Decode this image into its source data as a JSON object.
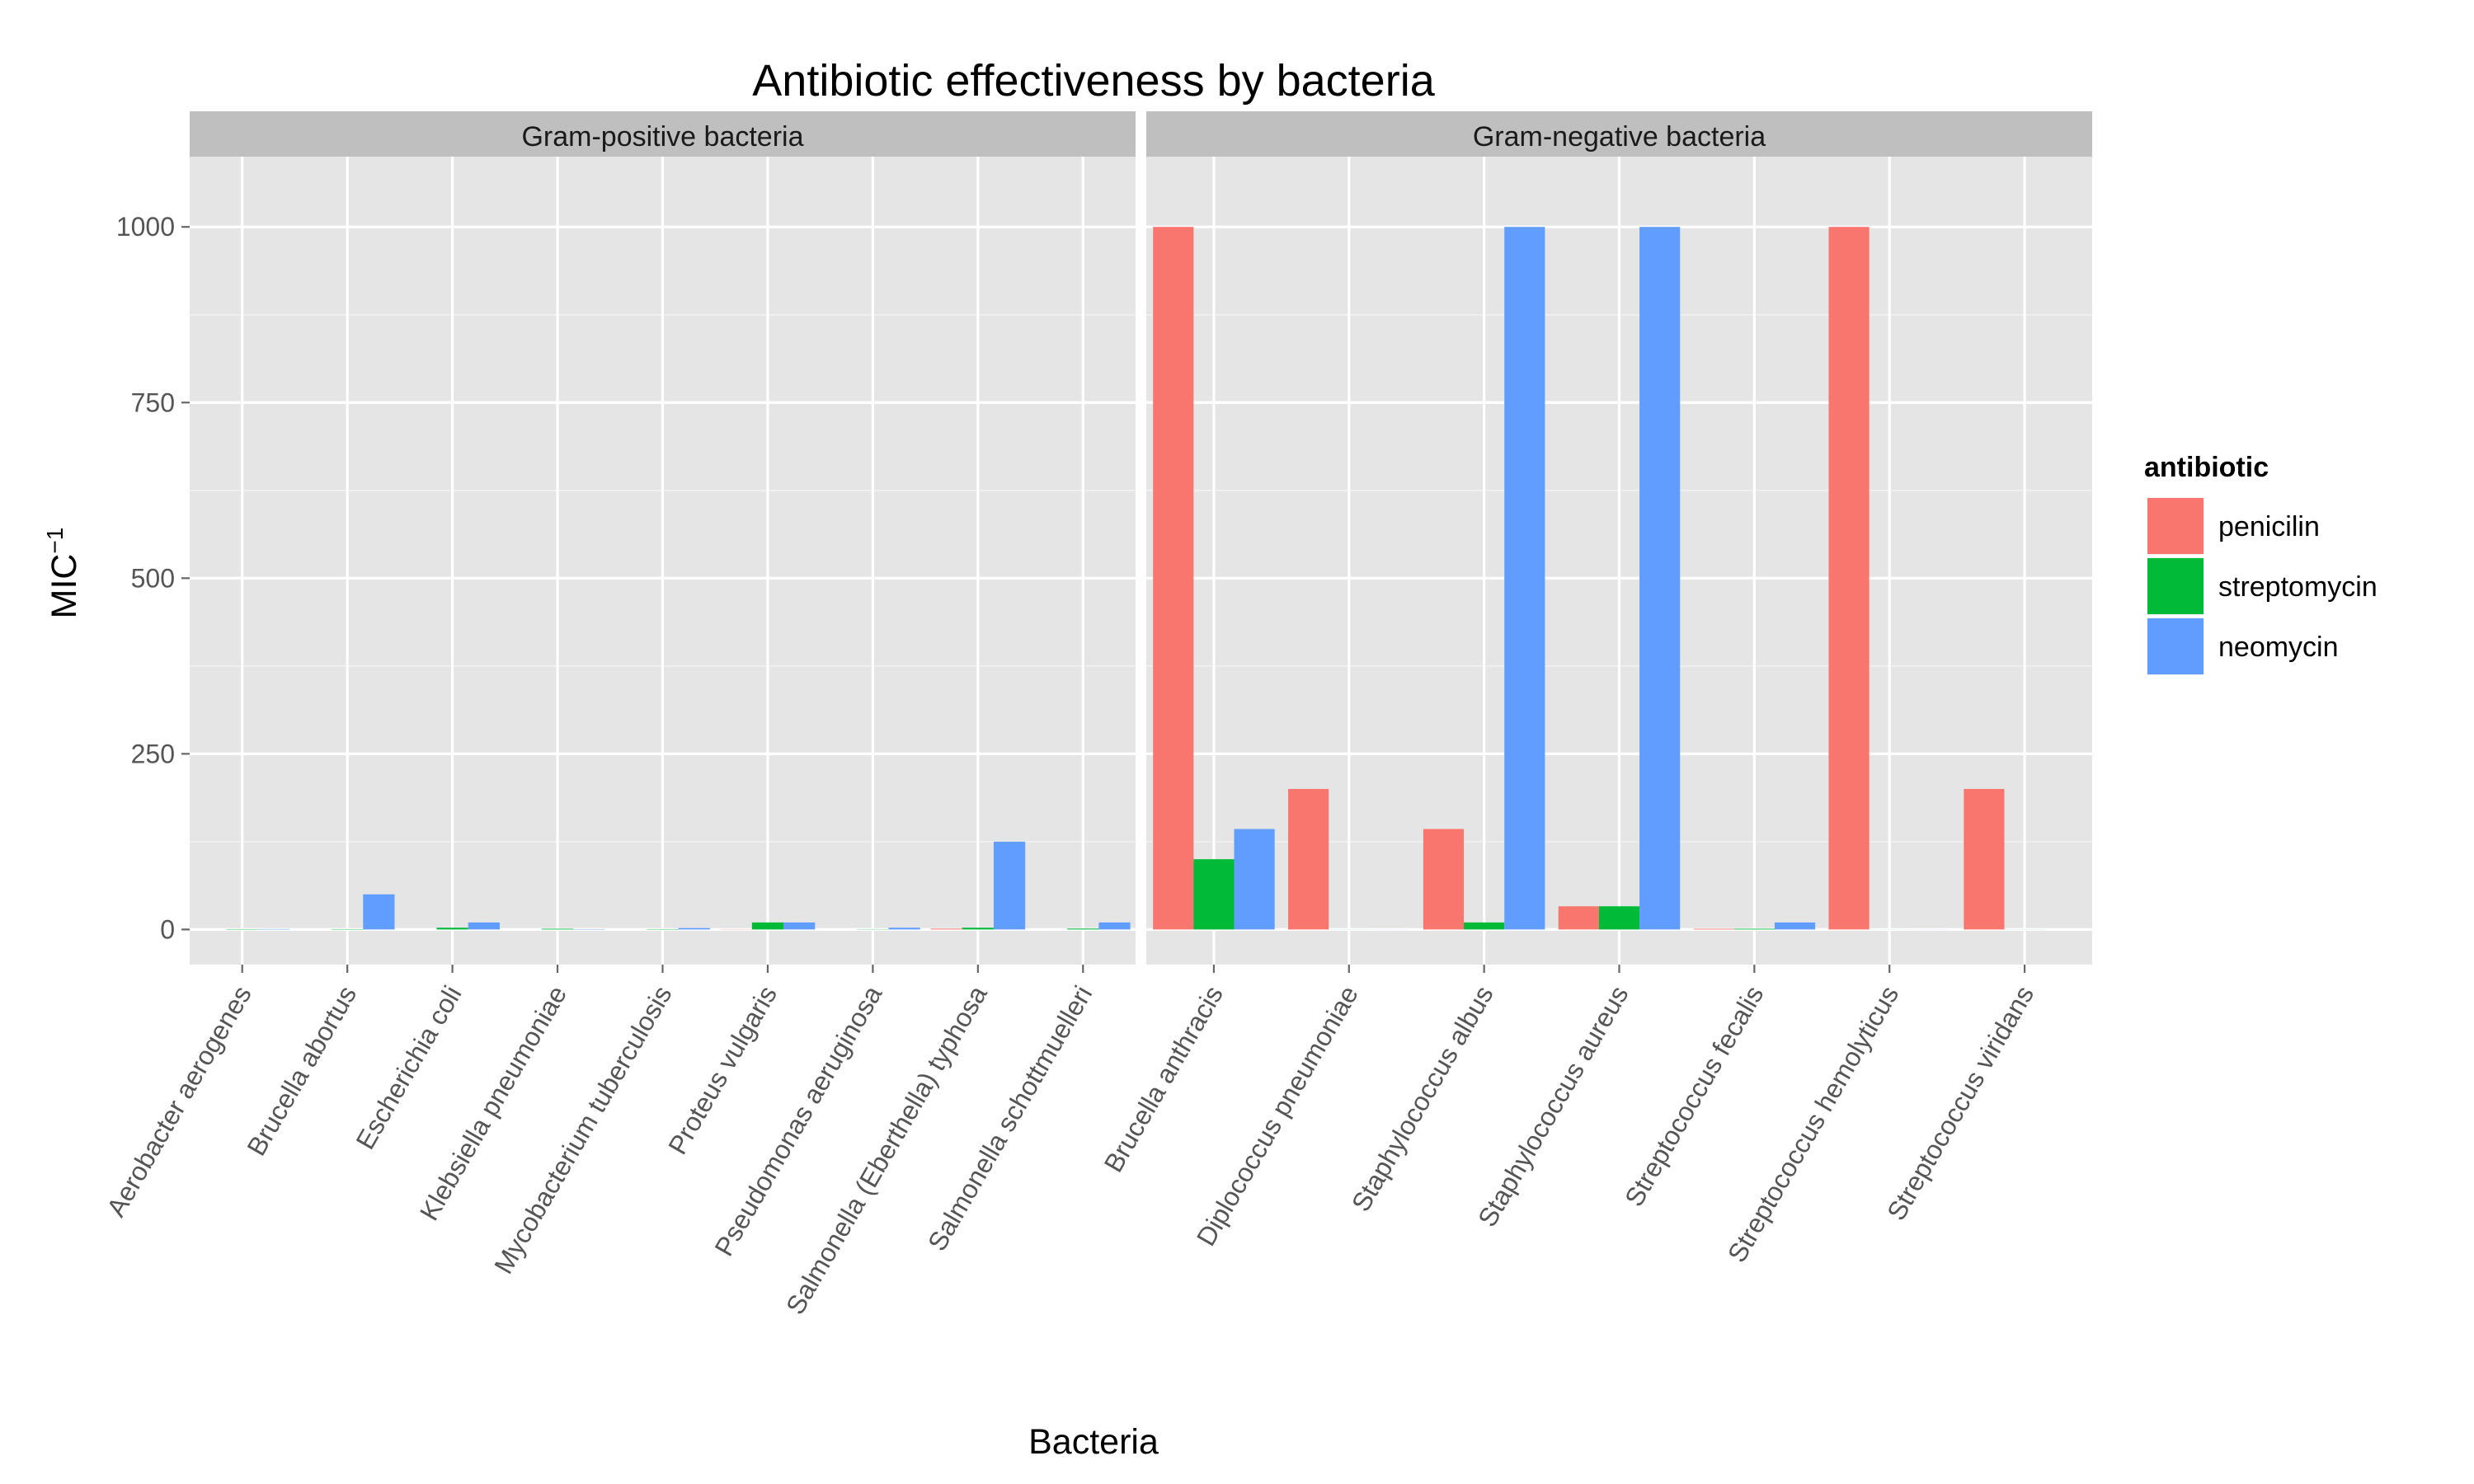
{
  "chart_data": {
    "type": "bar",
    "title": "Antibiotic effectiveness by bacteria",
    "xlabel": "Bacteria",
    "ylabel": "MIC",
    "ylabel_superscript": "−1",
    "ylim": [
      -50,
      1100
    ],
    "yticks": [
      0,
      250,
      500,
      750,
      1000
    ],
    "ytick_labels": [
      "0",
      "250",
      "500",
      "750",
      "1000"
    ],
    "grid": true,
    "legend": {
      "title": "antibiotic",
      "placement": "right",
      "entries": [
        "penicilin",
        "streptomycin",
        "neomycin"
      ]
    },
    "series": [
      {
        "name": "penicilin",
        "color": "#F8766D"
      },
      {
        "name": "streptomycin",
        "color": "#00BA38"
      },
      {
        "name": "neomycin",
        "color": "#619CFF"
      }
    ],
    "facets": [
      {
        "label": "Gram-positive bacteria",
        "categories": [
          "Aerobacter aerogenes",
          "Brucella abortus",
          "Escherichia coli",
          "Klebsiella pneumoniae",
          "Mycobacterium tuberculosis",
          "Proteus vulgaris",
          "Pseudomonas aeruginosa",
          "Salmonella (Eberthella) typhosa",
          "Salmonella schottmuelleri"
        ],
        "values": {
          "penicilin": [
            0.001,
            0.001,
            0.001,
            0.001,
            0.001,
            0.3,
            0.001,
            1.2,
            0.001
          ],
          "streptomycin": [
            0.5,
            0.5,
            2.5,
            1.0,
            0.5,
            10,
            0.3,
            2.5,
            1.25
          ],
          "neomycin": [
            0.6,
            50,
            10,
            0.5,
            2.0,
            10,
            2.5,
            125,
            10
          ]
        }
      },
      {
        "label": "Gram-negative bacteria",
        "categories": [
          "Brucella anthracis",
          "Diplococcus pneumoniae",
          "Staphylococcus albus",
          "Staphylococcus aureus",
          "Streptococcus fecalis",
          "Streptococcus hemolyticus",
          "Streptococcus viridans"
        ],
        "values": {
          "penicilin": [
            1000,
            200,
            143,
            33,
            1,
            1000,
            200
          ],
          "streptomycin": [
            100,
            0.09,
            10,
            33,
            1,
            0.07,
            0.1
          ],
          "neomycin": [
            143,
            0.1,
            1000,
            1000,
            10,
            0.1,
            0.025
          ]
        }
      }
    ]
  }
}
